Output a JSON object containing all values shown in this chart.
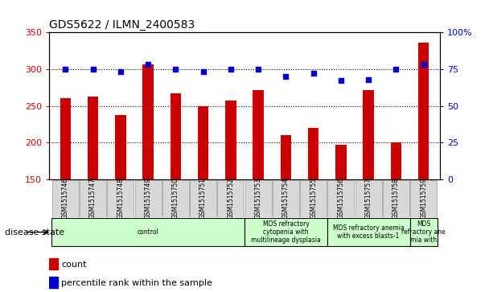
{
  "title": "GDS5622 / ILMN_2400583",
  "samples": [
    "GSM1515746",
    "GSM1515747",
    "GSM1515748",
    "GSM1515749",
    "GSM1515750",
    "GSM1515751",
    "GSM1515752",
    "GSM1515753",
    "GSM1515754",
    "GSM1515755",
    "GSM1515756",
    "GSM1515757",
    "GSM1515758",
    "GSM1515759"
  ],
  "counts": [
    260,
    263,
    238,
    306,
    267,
    250,
    257,
    271,
    210,
    220,
    197,
    271,
    200,
    336
  ],
  "percentiles": [
    75,
    75,
    73,
    78,
    75,
    73,
    75,
    75,
    70,
    72,
    67,
    68,
    75,
    78
  ],
  "bar_color": "#cc0000",
  "dot_color": "#0000cc",
  "ylim_left": [
    150,
    350
  ],
  "ylim_right": [
    0,
    100
  ],
  "yticks_left": [
    150,
    200,
    250,
    300,
    350
  ],
  "yticks_right": [
    0,
    25,
    50,
    75,
    100
  ],
  "ytick_labels_right": [
    "0",
    "25",
    "50",
    "75",
    "100%"
  ],
  "dotted_line_values": [
    200,
    250,
    300
  ],
  "disease_groups": [
    {
      "label": "control",
      "start": 0,
      "end": 7,
      "color": "#ccffcc"
    },
    {
      "label": "MDS refractory\ncytopenia with\nmultilineage dysplasia",
      "start": 7,
      "end": 10,
      "color": "#ccffcc"
    },
    {
      "label": "MDS refractory anemia\nwith excess blasts-1",
      "start": 10,
      "end": 13,
      "color": "#ccffcc"
    },
    {
      "label": "MDS\nrefractory ane\nmia with",
      "start": 13,
      "end": 14,
      "color": "#ccffcc"
    }
  ],
  "disease_state_label": "disease state",
  "legend_count_label": "count",
  "legend_percentile_label": "percentile rank within the sample",
  "bar_color_legend": "#cc0000",
  "dot_color_legend": "#0000cc",
  "left_tick_color": "#cc0000",
  "right_tick_color": "#0000cc",
  "bar_width": 0.4,
  "xlim": [
    -0.6,
    13.6
  ]
}
